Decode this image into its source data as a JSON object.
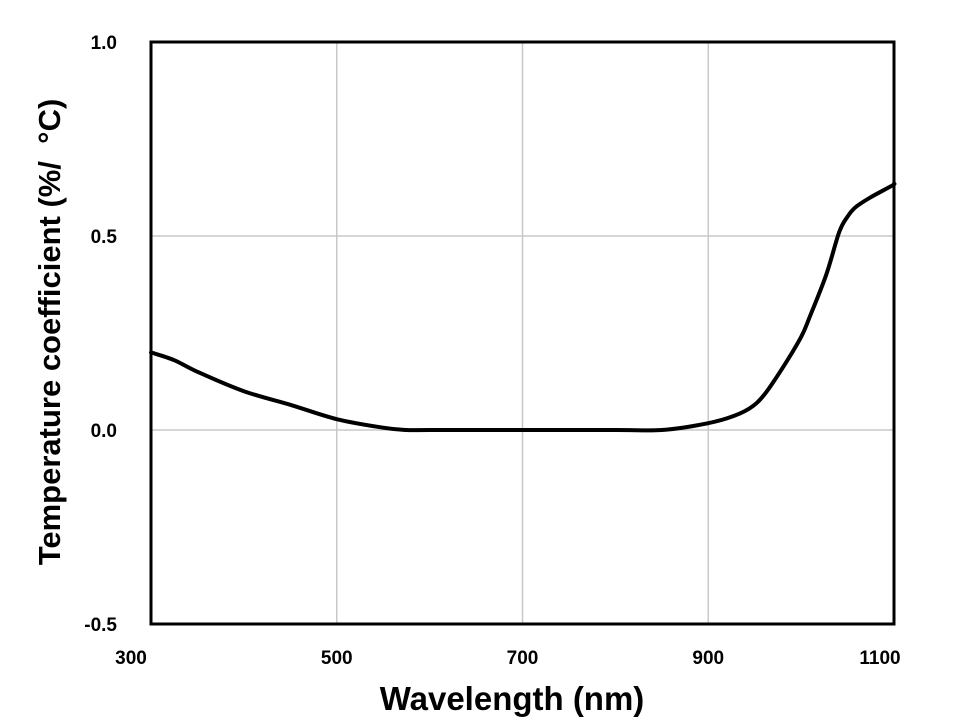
{
  "chart_data": {
    "type": "line",
    "title": "",
    "xlabel": "Wavelength (nm)",
    "ylabel": "Temperature coefficient (%/  °C)",
    "xlim": [
      300,
      1100
    ],
    "ylim": [
      -0.5,
      1.0
    ],
    "xticks": [
      "300",
      "500",
      "700",
      "900",
      "1100"
    ],
    "xtick_values": [
      300,
      500,
      700,
      900,
      1100
    ],
    "yticks": [
      "-0.5",
      "0.0",
      "0.5",
      "1.0"
    ],
    "ytick_values": [
      -0.5,
      0.0,
      0.5,
      1.0
    ],
    "grid": true,
    "series": [
      {
        "name": "Temperature coefficient",
        "color": "#000000",
        "x": [
          300,
          325,
          350,
          400,
          450,
          500,
          550,
          575,
          600,
          700,
          800,
          850,
          890,
          920,
          944,
          960,
          980,
          1000,
          1009,
          1027,
          1041,
          1050,
          1059,
          1075,
          1098,
          1100
        ],
        "y": [
          0.2,
          0.18,
          0.15,
          0.1,
          0.065,
          0.028,
          0.006,
          0.0,
          0.0,
          0.0,
          0.0,
          0.0,
          0.013,
          0.03,
          0.055,
          0.09,
          0.16,
          0.24,
          0.29,
          0.4,
          0.51,
          0.55,
          0.575,
          0.6,
          0.63,
          0.635
        ]
      }
    ]
  }
}
